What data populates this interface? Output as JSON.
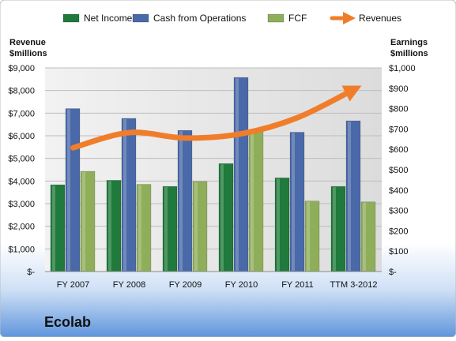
{
  "chart_data": {
    "type": "bar",
    "categories": [
      "FY 2007",
      "FY 2008",
      "FY 2009",
      "FY 2010",
      "FY 2011",
      "TTM 3-2012"
    ],
    "series": [
      {
        "name": "Net Income",
        "axis": "right",
        "color": "#1f7a3c",
        "values": [
          426,
          448,
          418,
          530,
          460,
          418
        ]
      },
      {
        "name": "Cash from Operations",
        "axis": "right",
        "color": "#4a69a8",
        "values": [
          800,
          752,
          693,
          953,
          684,
          740
        ]
      },
      {
        "name": "FCF",
        "axis": "right",
        "color": "#8fae5a",
        "values": [
          492,
          428,
          442,
          688,
          346,
          342
        ]
      },
      {
        "name": "Revenues",
        "axis": "left",
        "type": "line",
        "color": "#f07d2a",
        "values": [
          5470,
          6140,
          5900,
          6090,
          6800,
          8040
        ]
      }
    ],
    "ylabel_left": [
      "Revenue",
      "$millions"
    ],
    "ylabel_right": [
      "Earnings",
      "$millions"
    ],
    "ylim_left": [
      0,
      9000
    ],
    "ylim_right": [
      0,
      1000
    ],
    "yticks_left": [
      "$-",
      "$1,000",
      "$2,000",
      "$3,000",
      "$4,000",
      "$5,000",
      "$6,000",
      "$7,000",
      "$8,000",
      "$9,000"
    ],
    "yticks_right": [
      "$-",
      "$100",
      "$200",
      "$300",
      "$400",
      "$500",
      "$600",
      "$700",
      "$800",
      "$900",
      "$1,000"
    ],
    "legend_position": "top",
    "grid": true,
    "company_label": "Ecolab"
  }
}
